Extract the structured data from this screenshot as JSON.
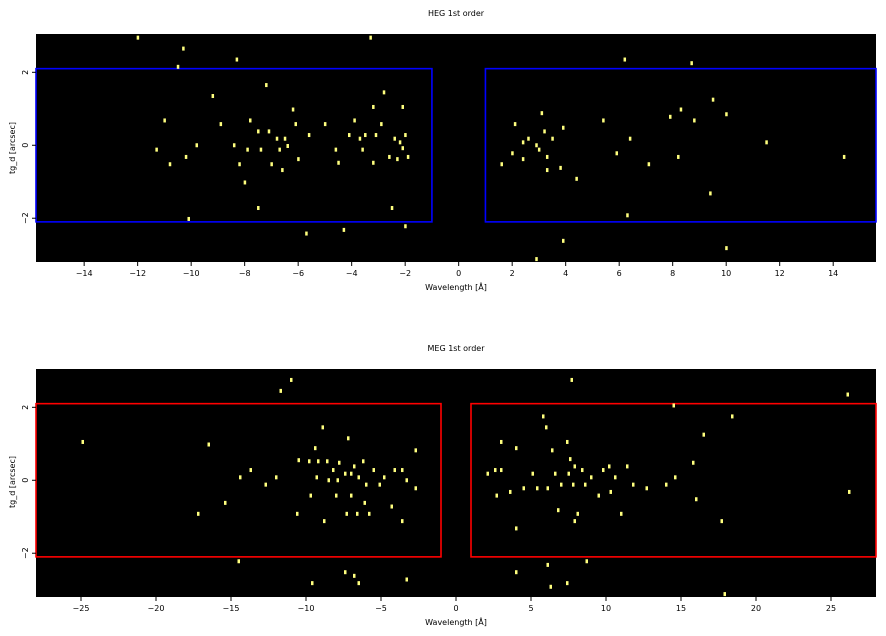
{
  "chart_data": [
    {
      "type": "scatter",
      "title": "HEG 1st order",
      "xlabel": "Wavelength [Å]",
      "ylabel": "tg_d [arcsec]",
      "xlim": [
        -15.8,
        15.6
      ],
      "ylim": [
        -3.2,
        3.05
      ],
      "xticks": [
        -14,
        -12,
        -10,
        -8,
        -6,
        -4,
        -2,
        0,
        2,
        4,
        6,
        8,
        10,
        12,
        14
      ],
      "yticks": [
        -2,
        0,
        2
      ],
      "background": "#000000",
      "point_color": "#ffff7f",
      "region_color": "#0000ff",
      "regions": [
        {
          "x": [
            -15.8,
            -1.0
          ],
          "y": [
            -2.1,
            2.1
          ]
        },
        {
          "x": [
            1.0,
            15.6
          ],
          "y": [
            -2.1,
            2.1
          ]
        }
      ],
      "points": [
        [
          -12.0,
          2.95
        ],
        [
          -10.3,
          2.65
        ],
        [
          -8.3,
          2.35
        ],
        [
          -3.3,
          2.95
        ],
        [
          -10.5,
          2.15
        ],
        [
          -7.2,
          1.65
        ],
        [
          -9.2,
          1.35
        ],
        [
          -6.2,
          0.98
        ],
        [
          -2.8,
          1.45
        ],
        [
          -3.2,
          1.05
        ],
        [
          -2.1,
          1.05
        ],
        [
          -11.0,
          0.68
        ],
        [
          -7.8,
          0.68
        ],
        [
          -6.1,
          0.58
        ],
        [
          -8.9,
          0.58
        ],
        [
          -3.9,
          0.68
        ],
        [
          -2.9,
          0.58
        ],
        [
          -5.0,
          0.58
        ],
        [
          -7.5,
          0.38
        ],
        [
          -7.1,
          0.38
        ],
        [
          -5.6,
          0.28
        ],
        [
          -4.1,
          0.28
        ],
        [
          -3.5,
          0.28
        ],
        [
          -3.1,
          0.28
        ],
        [
          -2.0,
          0.28
        ],
        [
          -6.8,
          0.18
        ],
        [
          -6.5,
          0.18
        ],
        [
          -3.7,
          0.18
        ],
        [
          -2.4,
          0.18
        ],
        [
          -2.2,
          0.08
        ],
        [
          -8.4,
          0.0
        ],
        [
          -6.4,
          -0.02
        ],
        [
          -6.7,
          -0.12
        ],
        [
          -4.6,
          -0.12
        ],
        [
          -3.6,
          -0.12
        ],
        [
          -2.1,
          -0.08
        ],
        [
          -7.4,
          -0.12
        ],
        [
          -7.9,
          -0.12
        ],
        [
          -9.8,
          0.0
        ],
        [
          -11.3,
          -0.12
        ],
        [
          -10.2,
          -0.32
        ],
        [
          -6.0,
          -0.38
        ],
        [
          -7.0,
          -0.52
        ],
        [
          -2.6,
          -0.32
        ],
        [
          -2.3,
          -0.38
        ],
        [
          -1.9,
          -0.32
        ],
        [
          -4.5,
          -0.48
        ],
        [
          -3.2,
          -0.48
        ],
        [
          -10.8,
          -0.52
        ],
        [
          -8.2,
          -0.52
        ],
        [
          -6.6,
          -0.68
        ],
        [
          -8.0,
          -1.02
        ],
        [
          -7.5,
          -1.72
        ],
        [
          -2.5,
          -1.72
        ],
        [
          -10.1,
          -2.02
        ],
        [
          -2.0,
          -2.22
        ],
        [
          -5.7,
          -2.42
        ],
        [
          -4.3,
          -2.32
        ],
        [
          2.1,
          0.58
        ],
        [
          3.1,
          0.88
        ],
        [
          3.9,
          0.48
        ],
        [
          3.2,
          0.38
        ],
        [
          2.6,
          0.18
        ],
        [
          2.4,
          0.08
        ],
        [
          3.5,
          0.18
        ],
        [
          2.9,
          0.0
        ],
        [
          3.0,
          -0.12
        ],
        [
          2.0,
          -0.22
        ],
        [
          1.6,
          -0.52
        ],
        [
          2.4,
          -0.38
        ],
        [
          3.3,
          -0.32
        ],
        [
          3.3,
          -0.68
        ],
        [
          3.8,
          -0.62
        ],
        [
          4.4,
          -0.92
        ],
        [
          5.4,
          0.68
        ],
        [
          6.2,
          2.35
        ],
        [
          6.4,
          0.18
        ],
        [
          5.9,
          -0.22
        ],
        [
          7.1,
          -0.52
        ],
        [
          7.9,
          0.78
        ],
        [
          8.3,
          0.98
        ],
        [
          8.8,
          0.68
        ],
        [
          8.7,
          2.25
        ],
        [
          9.5,
          1.25
        ],
        [
          10.0,
          0.85
        ],
        [
          8.2,
          -0.32
        ],
        [
          11.5,
          0.08
        ],
        [
          14.4,
          -0.32
        ],
        [
          9.4,
          -1.32
        ],
        [
          6.3,
          -1.92
        ],
        [
          3.9,
          -2.62
        ],
        [
          10.0,
          -2.82
        ],
        [
          2.9,
          -3.12
        ]
      ]
    },
    {
      "type": "scatter",
      "title": "MEG 1st order",
      "xlabel": "Wavelength [Å]",
      "ylabel": "tg_d [arcsec]",
      "xlim": [
        -28.0,
        28.0
      ],
      "ylim": [
        -3.2,
        3.05
      ],
      "xticks": [
        -25,
        -20,
        -15,
        -10,
        -5,
        0,
        5,
        10,
        15,
        20,
        25
      ],
      "yticks": [
        -2,
        0,
        2
      ],
      "background": "#000000",
      "point_color": "#ffff7f",
      "region_color": "#ff0000",
      "regions": [
        {
          "x": [
            -28.0,
            -1.0
          ],
          "y": [
            -2.1,
            2.1
          ]
        },
        {
          "x": [
            1.0,
            28.0
          ],
          "y": [
            -2.1,
            2.1
          ]
        }
      ],
      "points": [
        [
          -11.0,
          2.75
        ],
        [
          -11.7,
          2.45
        ],
        [
          -8.9,
          1.45
        ],
        [
          -7.2,
          1.15
        ],
        [
          -9.4,
          0.88
        ],
        [
          -10.5,
          0.55
        ],
        [
          -9.8,
          0.52
        ],
        [
          -9.2,
          0.52
        ],
        [
          -8.6,
          0.52
        ],
        [
          -7.8,
          0.48
        ],
        [
          -6.8,
          0.38
        ],
        [
          -6.2,
          0.52
        ],
        [
          -5.5,
          0.28
        ],
        [
          -4.1,
          0.28
        ],
        [
          -3.6,
          0.28
        ],
        [
          -8.2,
          0.28
        ],
        [
          -7.4,
          0.18
        ],
        [
          -7.0,
          0.18
        ],
        [
          -6.5,
          0.08
        ],
        [
          -8.5,
          0.0
        ],
        [
          -7.9,
          0.0
        ],
        [
          -6.0,
          -0.12
        ],
        [
          -5.1,
          -0.12
        ],
        [
          -9.3,
          0.08
        ],
        [
          -4.8,
          0.08
        ],
        [
          -3.3,
          0.0
        ],
        [
          -2.7,
          -0.22
        ],
        [
          -12.0,
          0.08
        ],
        [
          -12.7,
          -0.12
        ],
        [
          -13.7,
          0.28
        ],
        [
          -9.7,
          -0.42
        ],
        [
          -8.0,
          -0.42
        ],
        [
          -7.0,
          -0.42
        ],
        [
          -6.1,
          -0.62
        ],
        [
          -4.3,
          -0.72
        ],
        [
          -3.6,
          -1.12
        ],
        [
          -7.3,
          -0.92
        ],
        [
          -6.6,
          -0.92
        ],
        [
          -5.8,
          -0.92
        ],
        [
          -8.8,
          -1.12
        ],
        [
          -10.6,
          -0.92
        ],
        [
          -15.4,
          -0.62
        ],
        [
          -17.2,
          -0.92
        ],
        [
          -14.4,
          0.08
        ],
        [
          -16.5,
          0.98
        ],
        [
          -24.9,
          1.05
        ],
        [
          -14.5,
          -2.22
        ],
        [
          -7.4,
          -2.52
        ],
        [
          -6.8,
          -2.62
        ],
        [
          -6.5,
          -2.82
        ],
        [
          -9.6,
          -2.82
        ],
        [
          -3.3,
          -2.72
        ],
        [
          -2.7,
          0.82
        ],
        [
          5.8,
          1.75
        ],
        [
          7.7,
          2.75
        ],
        [
          3.0,
          1.05
        ],
        [
          4.0,
          0.88
        ],
        [
          6.4,
          0.82
        ],
        [
          7.6,
          0.58
        ],
        [
          7.9,
          0.38
        ],
        [
          8.4,
          0.28
        ],
        [
          10.2,
          0.38
        ],
        [
          11.4,
          0.38
        ],
        [
          9.8,
          0.28
        ],
        [
          3.0,
          0.28
        ],
        [
          2.1,
          0.18
        ],
        [
          2.6,
          0.28
        ],
        [
          5.1,
          0.18
        ],
        [
          6.6,
          0.18
        ],
        [
          7.5,
          0.18
        ],
        [
          9.0,
          0.08
        ],
        [
          10.6,
          0.08
        ],
        [
          8.6,
          -0.12
        ],
        [
          7.8,
          -0.12
        ],
        [
          7.0,
          -0.12
        ],
        [
          6.1,
          -0.22
        ],
        [
          5.4,
          -0.22
        ],
        [
          4.5,
          -0.22
        ],
        [
          3.6,
          -0.32
        ],
        [
          2.7,
          -0.42
        ],
        [
          9.5,
          -0.42
        ],
        [
          10.3,
          -0.32
        ],
        [
          11.8,
          -0.12
        ],
        [
          12.7,
          -0.22
        ],
        [
          14.0,
          -0.12
        ],
        [
          14.6,
          0.08
        ],
        [
          15.8,
          0.48
        ],
        [
          6.0,
          1.45
        ],
        [
          7.4,
          1.05
        ],
        [
          8.1,
          -0.92
        ],
        [
          7.9,
          -1.12
        ],
        [
          6.8,
          -0.82
        ],
        [
          11.0,
          -0.92
        ],
        [
          4.0,
          -1.32
        ],
        [
          16.5,
          1.25
        ],
        [
          18.4,
          1.75
        ],
        [
          14.5,
          2.05
        ],
        [
          16.0,
          -0.52
        ],
        [
          17.7,
          -1.12
        ],
        [
          26.1,
          2.35
        ],
        [
          26.2,
          -0.32
        ],
        [
          4.0,
          -2.52
        ],
        [
          6.3,
          -2.92
        ],
        [
          7.4,
          -2.82
        ],
        [
          8.7,
          -2.22
        ],
        [
          6.1,
          -2.32
        ],
        [
          17.9,
          -3.12
        ]
      ]
    }
  ]
}
